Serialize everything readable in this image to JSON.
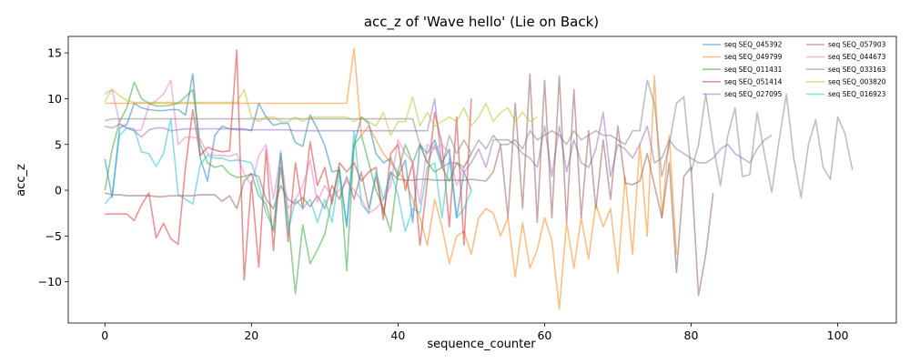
{
  "chart_data": {
    "type": "line",
    "title": "acc_z of 'Wave hello' (Lie on Back)",
    "xlabel": "sequence_counter",
    "ylabel": "acc_z",
    "xlim": [
      -5,
      108
    ],
    "ylim": [
      -14.5,
      16.8
    ],
    "xticks": [
      0,
      20,
      40,
      60,
      80,
      100
    ],
    "yticks": [
      -10,
      -5,
      0,
      5,
      10,
      15
    ],
    "grid": false,
    "legend_position": "top-right",
    "legend_columns": 2,
    "line_alpha": 0.5,
    "series": [
      {
        "name": "seq SEQ_045392",
        "color": "#1f77b4",
        "values": [
          3.4,
          -0.8,
          6.8,
          7.2,
          9.5,
          9.0,
          8.8,
          8.7,
          8.7,
          8.8,
          8.8,
          8.2,
          12.7,
          3.5,
          1.0,
          6.0,
          7.0,
          6.7,
          6.7,
          6.7,
          6.5,
          9.5,
          8.0,
          7.1,
          7.3,
          7.3,
          5.2,
          4.8,
          8.2,
          6.7,
          4.9,
          2.0,
          2.2,
          -4.0,
          5.0,
          8.0,
          7.3,
          4.0,
          3.0,
          3.5,
          1.5,
          3.3,
          -3.5,
          5.0,
          4.0,
          5.5,
          3.0,
          4.5,
          -3.0,
          2.0,
          0.0
        ]
      },
      {
        "name": "seq SEQ_049799",
        "color": "#ff7f0e",
        "values": [
          9.5,
          9.5,
          9.5,
          9.5,
          9.5,
          9.5,
          9.5,
          9.5,
          9.5,
          9.5,
          9.5,
          9.5,
          9.5,
          9.5,
          9.5,
          9.5,
          9.5,
          9.5,
          9.5,
          9.5,
          9.5,
          9.5,
          9.5,
          9.5,
          9.5,
          9.5,
          9.5,
          9.5,
          9.5,
          9.5,
          9.5,
          9.5,
          9.5,
          9.5,
          15.5,
          6.0,
          7.0,
          5.5,
          4.0,
          3.0,
          2.0,
          1.0,
          -1.0,
          -3.0,
          -6.0,
          -1.0,
          -4.0,
          -8.0,
          -5.0,
          -4.5,
          -7.0,
          -3.0,
          -2.0,
          -2.5,
          -5.0,
          -3.0,
          -9.5,
          -3.5,
          -8.5,
          -6.5,
          -3.0,
          -5.5,
          -13.0,
          -3.5,
          -8.5,
          -3.0,
          -7.5,
          -1.5,
          -4.0,
          -2.0,
          -9.0,
          1.5,
          -7.0,
          5.0,
          -5.0,
          12.5,
          -3.0,
          6.0,
          -7.0
        ]
      },
      {
        "name": "seq SEQ_011431",
        "color": "#2ca02c",
        "values": [
          0.0,
          4.5,
          7.5,
          9.0,
          11.8,
          10.0,
          9.5,
          9.2,
          9.2,
          9.3,
          9.5,
          10.2,
          11.0,
          5.0,
          3.0,
          2.5,
          2.7,
          1.8,
          1.4,
          1.5,
          1.8,
          -0.6,
          -1.5,
          -4.5,
          2.5,
          -3.0,
          -11.3,
          -3.8,
          -8.0,
          -6.5,
          -4.8,
          -1.0,
          2.5,
          -8.8,
          5.0,
          6.0,
          3.0,
          0.0,
          -2.0,
          -4.5,
          2.0,
          5.0,
          3.0,
          5.0,
          3.0,
          2.0,
          2.5,
          1.0,
          3.0,
          2.5,
          4.0
        ]
      },
      {
        "name": "seq SEQ_051414",
        "color": "#d62728",
        "values": [
          -2.6,
          -2.6,
          -2.6,
          -2.6,
          -3.3,
          -1.6,
          -0.3,
          -5.2,
          -3.6,
          -5.3,
          -5.9,
          2.5,
          8.8,
          3.8,
          4.7,
          4.4,
          4.2,
          4.3,
          15.3,
          -9.8,
          1.0,
          -8.4,
          4.5,
          -6.6,
          4.0,
          -5.6,
          3.0,
          -2.0,
          5.3,
          0.5,
          2.5,
          -1.5,
          3.0,
          2.0,
          3.0,
          1.0,
          2.0,
          2.5,
          -3.2,
          4.0,
          5.0,
          0.0,
          3.0,
          -6.0,
          1.0,
          8.5,
          5.0,
          -4.0,
          8.0,
          -6.0,
          10.0
        ]
      },
      {
        "name": "seq SEQ_027095",
        "color": "#9467bd",
        "values": [
          7.0,
          6.8,
          7.2,
          6.8,
          6.5,
          5.8,
          6.6,
          6.8,
          6.8,
          6.5,
          6.6,
          6.7,
          6.7,
          6.7,
          6.7,
          6.7,
          6.7,
          6.7,
          6.6,
          6.6,
          6.6,
          6.6,
          6.6,
          6.6,
          6.6,
          6.6,
          6.5,
          6.5,
          6.5,
          6.5,
          6.5,
          6.5,
          6.5,
          6.5,
          6.5,
          6.5,
          6.5,
          6.5,
          6.5,
          6.5,
          6.5,
          6.5,
          6.5,
          6.5,
          6.5,
          10.0,
          2.5,
          3.0,
          3.0,
          2.0,
          3.0,
          4.5,
          2.5,
          5.5,
          5.5,
          5.5,
          5.0,
          4.0,
          3.5,
          2.5,
          7.0,
          1.5,
          7.0,
          2.0,
          5.5,
          3.0,
          2.5,
          4.5,
          8.5,
          1.5,
          5.0,
          4.5,
          3.5,
          5.0,
          7.0,
          3.0,
          3.5,
          5.5,
          4.5,
          4.0,
          3.5,
          3.0,
          3.0,
          3.5,
          4.5,
          5.0,
          4.0,
          3.5,
          3.0,
          4.5,
          5.5,
          6.0
        ]
      },
      {
        "name": "seq SEQ_057903",
        "color": "#8c564b",
        "values": [
          -0.3,
          -0.5,
          -0.5,
          -0.6,
          -0.6,
          -0.6,
          -0.6,
          -0.7,
          -0.7,
          -0.6,
          -0.6,
          -0.6,
          -0.6,
          -0.5,
          -0.5,
          -0.5,
          -1.2,
          -0.6,
          -2.0,
          1.0,
          1.8,
          1.5,
          -1.0,
          -2.0,
          0.5,
          -1.0,
          -1.5,
          -0.8,
          -1.8,
          -0.6,
          -2.0,
          0.5,
          -1.0,
          1.5,
          -1.0,
          2.0,
          -2.0,
          1.5,
          -2.5,
          2.0,
          1.2,
          1.1,
          1.1,
          1.2,
          1.2,
          1.1,
          1.1,
          1.1,
          1.1,
          1.1,
          1.2,
          1.1,
          1.0,
          2.0,
          5.0,
          -3.0,
          9.5,
          -2.0,
          12.7,
          -3.5,
          12.0,
          -3.0,
          12.5,
          -3.5,
          11.0,
          -3.0,
          6.5,
          -2.0,
          5.5,
          -1.0,
          7.0,
          0.8,
          0.6,
          1.0,
          4.0,
          0.5,
          -3.0,
          3.0,
          -9.0,
          1.5,
          2.5,
          -11.5,
          -7.0,
          -0.3
        ]
      },
      {
        "name": "seq SEQ_044673",
        "color": "#e377c2",
        "values": [
          10.5,
          11.0,
          7.3,
          6.8,
          6.5,
          6.6,
          9.3,
          9.8,
          10.5,
          12.0,
          5.0,
          5.8,
          5.8,
          5.6,
          4.0,
          3.8,
          3.8,
          3.7,
          4.0,
          1.8,
          0.5,
          3.8,
          5.0,
          -1.0,
          4.0,
          -2.0,
          -1.0,
          0.5,
          3.3,
          -1.3,
          0.5,
          -0.7,
          0.0,
          1.0,
          0.0,
          -1.0,
          -2.5,
          -2.0,
          -1.0,
          0.5,
          5.5,
          4.0,
          3.0,
          -1.5,
          5.0,
          4.5,
          5.0,
          4.0,
          0.5,
          2.5,
          4.0
        ]
      },
      {
        "name": "seq SEQ_033163",
        "color": "#7f7f7f",
        "values": [
          7.6,
          7.8,
          7.8,
          7.8,
          7.8,
          7.8,
          7.8,
          7.8,
          7.8,
          7.8,
          7.8,
          7.8,
          7.8,
          7.8,
          7.8,
          7.8,
          7.8,
          7.8,
          7.8,
          7.8,
          7.8,
          7.8,
          7.8,
          7.8,
          7.8,
          7.8,
          7.8,
          7.8,
          7.8,
          7.8,
          7.8,
          7.8,
          7.8,
          7.8,
          7.8,
          7.8,
          7.8,
          7.8,
          7.8,
          7.8,
          7.8,
          7.8,
          7.8,
          5.0,
          3.0,
          5.0,
          2.5,
          6.0,
          4.0,
          5.5,
          4.0,
          5.5,
          4.5,
          6.0,
          5.0,
          5.0,
          5.5,
          4.5,
          6.5,
          5.5,
          6.0,
          6.5,
          6.0,
          5.0,
          6.5,
          5.5,
          6.0,
          6.5,
          6.0,
          6.0,
          5.5,
          5.0,
          6.5,
          6.5,
          12.0,
          9.5,
          1.5,
          5.0,
          9.5,
          10.2,
          2.0,
          5.0,
          10.5,
          5.0,
          0.5,
          6.0,
          9.0,
          1.5,
          1.7,
          8.5,
          4.0,
          -0.2,
          5.5,
          10.5,
          3.5,
          -0.8,
          5.0,
          7.7,
          2.5,
          1.2,
          8.0,
          6.2,
          2.2
        ]
      },
      {
        "name": "seq SEQ_003820",
        "color": "#bcbd22",
        "values": [
          9.7,
          11.0,
          10.3,
          9.8,
          9.6,
          9.6,
          9.6,
          9.6,
          9.6,
          9.6,
          9.6,
          9.6,
          9.6,
          9.6,
          9.6,
          9.6,
          9.6,
          9.6,
          9.6,
          11.0,
          8.0,
          7.5,
          8.0,
          8.0,
          7.5,
          7.5,
          8.0,
          7.5,
          8.0,
          8.0,
          8.0,
          8.0,
          8.0,
          8.0,
          7.5,
          8.0,
          7.5,
          7.0,
          8.5,
          6.0,
          7.5,
          7.5,
          10.2,
          7.0,
          8.5,
          7.0,
          7.5,
          8.0,
          7.5,
          9.0,
          7.0,
          8.0,
          9.5,
          7.5,
          8.5,
          9.0,
          7.5,
          8.5,
          7.5,
          8.0
        ]
      },
      {
        "name": "seq SEQ_016923",
        "color": "#17becf",
        "values": [
          -1.5,
          -0.5,
          6.0,
          6.8,
          6.7,
          4.2,
          4.0,
          2.6,
          4.0,
          7.8,
          -0.5,
          -1.0,
          -1.5,
          2.8,
          3.8,
          3.5,
          3.5,
          3.2,
          3.3,
          3.2,
          3.0,
          0.5,
          -2.5,
          -4.2,
          4.3,
          -4.5,
          -1.0,
          -2.0,
          -1.0,
          -3.5,
          -1.0,
          -3.5,
          2.0,
          -3.8,
          6.5,
          -1.5,
          -2.5,
          2.0,
          -1.0,
          2.0,
          -0.5,
          -4.5,
          -2.0,
          -2.5,
          2.5,
          3.0,
          -3.0,
          3.5,
          -3.0,
          -2.0,
          0.0
        ]
      }
    ]
  }
}
